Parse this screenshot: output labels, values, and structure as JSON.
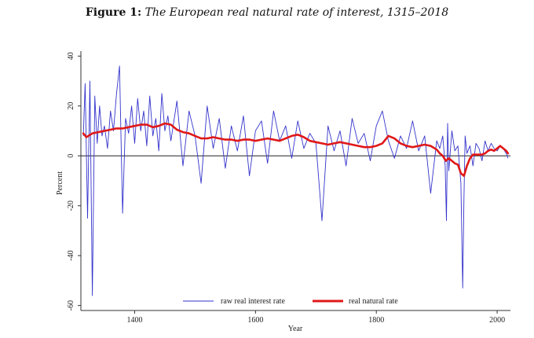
{
  "figure": {
    "label": "Figure 1:",
    "title": "The European real natural rate of interest, 1315–2018"
  },
  "chart_data": {
    "type": "line",
    "xlabel": "Year",
    "ylabel": "Percent",
    "xlim": [
      1311,
      2022
    ],
    "ylim": [
      -62,
      42
    ],
    "xticks": [
      1400,
      1600,
      1800,
      2000
    ],
    "yticks": [
      -60,
      -40,
      -20,
      0,
      20,
      40
    ],
    "grid": false,
    "reference_line_y": 0,
    "legend": {
      "position": "bottom"
    },
    "series": [
      {
        "name": "raw real interest rate",
        "color": "#3333cc",
        "style": "volatile annual observations around the natural rate",
        "x": [
          1315,
          1318,
          1322,
          1326,
          1330,
          1334,
          1338,
          1342,
          1346,
          1350,
          1355,
          1360,
          1365,
          1370,
          1375,
          1380,
          1385,
          1390,
          1395,
          1400,
          1405,
          1410,
          1415,
          1420,
          1425,
          1430,
          1435,
          1440,
          1445,
          1450,
          1455,
          1460,
          1470,
          1480,
          1490,
          1500,
          1510,
          1520,
          1530,
          1540,
          1550,
          1560,
          1570,
          1580,
          1590,
          1600,
          1610,
          1620,
          1630,
          1640,
          1650,
          1660,
          1670,
          1680,
          1690,
          1700,
          1710,
          1720,
          1730,
          1740,
          1750,
          1760,
          1770,
          1780,
          1790,
          1800,
          1810,
          1820,
          1830,
          1840,
          1850,
          1860,
          1870,
          1880,
          1890,
          1900,
          1905,
          1910,
          1914,
          1916,
          1918,
          1920,
          1925,
          1930,
          1935,
          1940,
          1943,
          1945,
          1947,
          1950,
          1955,
          1960,
          1965,
          1970,
          1975,
          1980,
          1985,
          1990,
          1995,
          2000,
          2005,
          2010,
          2015,
          2018
        ],
        "y": [
          8,
          29,
          -25,
          30,
          -56,
          24,
          5,
          20,
          8,
          12,
          3,
          18,
          10,
          25,
          36,
          -23,
          15,
          9,
          20,
          5,
          23,
          10,
          18,
          4,
          24,
          8,
          15,
          2,
          25,
          10,
          16,
          6,
          22,
          -4,
          18,
          8,
          -11,
          20,
          3,
          15,
          -5,
          12,
          2,
          16,
          -8,
          10,
          14,
          -3,
          18,
          6,
          12,
          -1,
          14,
          3,
          9,
          5,
          -26,
          12,
          2,
          10,
          -4,
          15,
          5,
          9,
          -2,
          12,
          18,
          6,
          -1,
          8,
          3,
          14,
          2,
          8,
          -15,
          6,
          3,
          8,
          -4,
          -26,
          13,
          -6,
          10,
          2,
          4,
          -11,
          -53,
          -17,
          8,
          1,
          4,
          -4,
          5,
          3,
          -2,
          6,
          2,
          5,
          3,
          2,
          4,
          3,
          1,
          -1
        ]
      },
      {
        "name": "real natural rate",
        "color": "#e01818",
        "x": [
          1315,
          1320,
          1330,
          1340,
          1350,
          1360,
          1370,
          1380,
          1390,
          1400,
          1410,
          1420,
          1430,
          1440,
          1450,
          1460,
          1470,
          1480,
          1490,
          1500,
          1510,
          1520,
          1530,
          1540,
          1550,
          1560,
          1570,
          1580,
          1590,
          1600,
          1610,
          1620,
          1630,
          1640,
          1650,
          1660,
          1670,
          1680,
          1690,
          1700,
          1710,
          1720,
          1730,
          1740,
          1750,
          1760,
          1770,
          1780,
          1790,
          1800,
          1810,
          1820,
          1830,
          1840,
          1850,
          1860,
          1870,
          1880,
          1890,
          1900,
          1905,
          1910,
          1915,
          1920,
          1925,
          1930,
          1935,
          1940,
          1945,
          1950,
          1955,
          1960,
          1965,
          1970,
          1975,
          1980,
          1985,
          1990,
          1995,
          2000,
          2005,
          2010,
          2015,
          2018
        ],
        "y": [
          9,
          7.5,
          9,
          9.5,
          10,
          10.5,
          11,
          11,
          11.5,
          12,
          12.5,
          12.5,
          11.5,
          12,
          13,
          12.5,
          10.5,
          9.5,
          9,
          8,
          7,
          7,
          7.5,
          7,
          6.5,
          6.5,
          6,
          6.5,
          6.5,
          6,
          6.5,
          7,
          6.5,
          6,
          7,
          8,
          8.5,
          7.5,
          6,
          5.5,
          5,
          4.5,
          5,
          5.5,
          5,
          4.5,
          4,
          3.5,
          3.5,
          4,
          5,
          8,
          7,
          5,
          4,
          3.5,
          4,
          4.5,
          4,
          2.5,
          1,
          0,
          -2,
          -1,
          -2,
          -3,
          -3.5,
          -7,
          -8,
          -4,
          -1,
          0.5,
          0.5,
          0.5,
          0.5,
          1,
          2,
          2.5,
          2,
          3,
          4,
          3,
          2,
          1
        ]
      }
    ]
  }
}
